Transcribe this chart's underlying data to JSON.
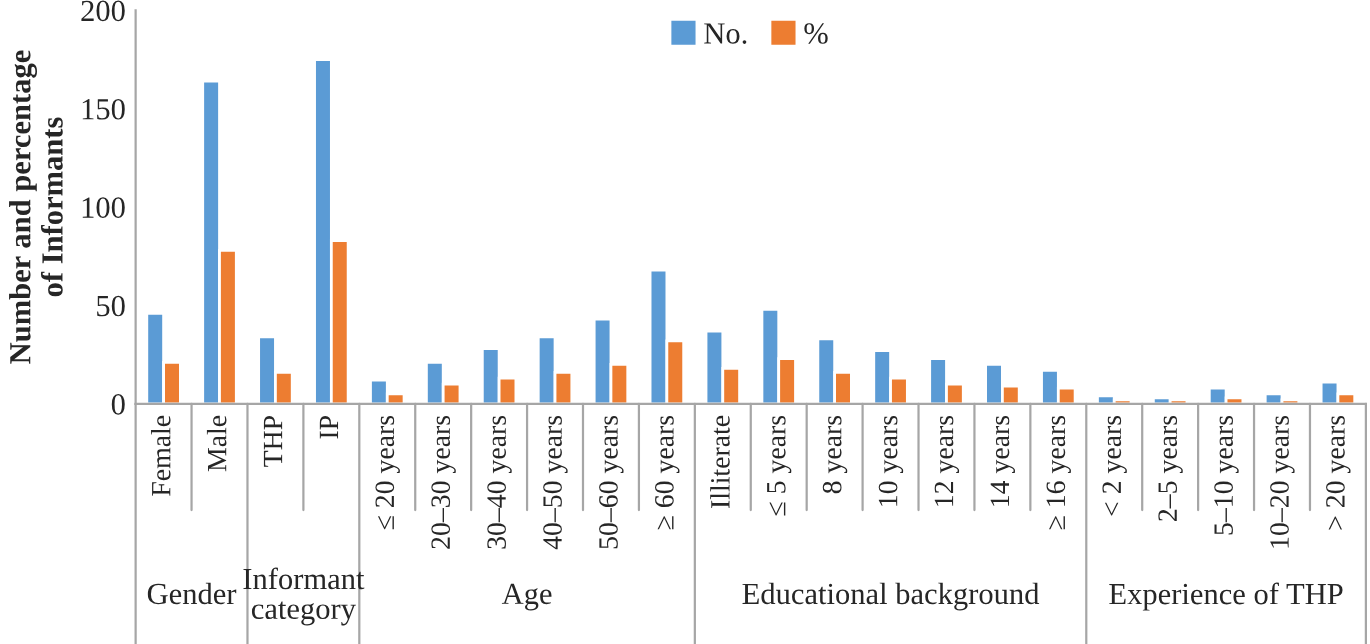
{
  "chart_data": {
    "type": "bar",
    "ylabel": "Number and percentage\nof Informants",
    "categories": [
      "Female",
      "Male",
      "THP",
      "IP",
      "≤ 20 years",
      "20–30 years",
      "30–40 years",
      "40–50 years",
      "50–60 years",
      "≥ 60 years",
      "Illiterate",
      "≤ 5 years",
      "8 years",
      "10 years",
      "12 years",
      "14 years",
      "≥ 16 years",
      "< 2 years",
      "2–5 years",
      "5–10 years",
      "10–20 years",
      "> 20 years"
    ],
    "series": [
      {
        "name": "No.",
        "color": "#5b9bd5",
        "values": [
          46,
          164,
          34,
          175,
          12,
          21,
          28,
          34,
          43,
          68,
          37,
          48,
          33,
          27,
          23,
          20,
          17,
          4,
          3,
          8,
          5,
          11
        ]
      },
      {
        "name": "%",
        "color": "#ed7d31",
        "values": [
          21,
          78,
          16,
          83,
          5,
          10,
          13,
          16,
          20,
          32,
          18,
          23,
          16,
          13,
          10,
          9,
          8,
          2,
          2,
          3,
          2,
          5
        ]
      }
    ],
    "annotations": [
      "Gender",
      "Informant\ncategory",
      "Age",
      "Educational background",
      "Experience of THP"
    ],
    "ylim": [
      0,
      200
    ],
    "yticks": [
      0,
      50,
      100,
      150,
      200
    ],
    "legend": "top",
    "grid": false
  }
}
